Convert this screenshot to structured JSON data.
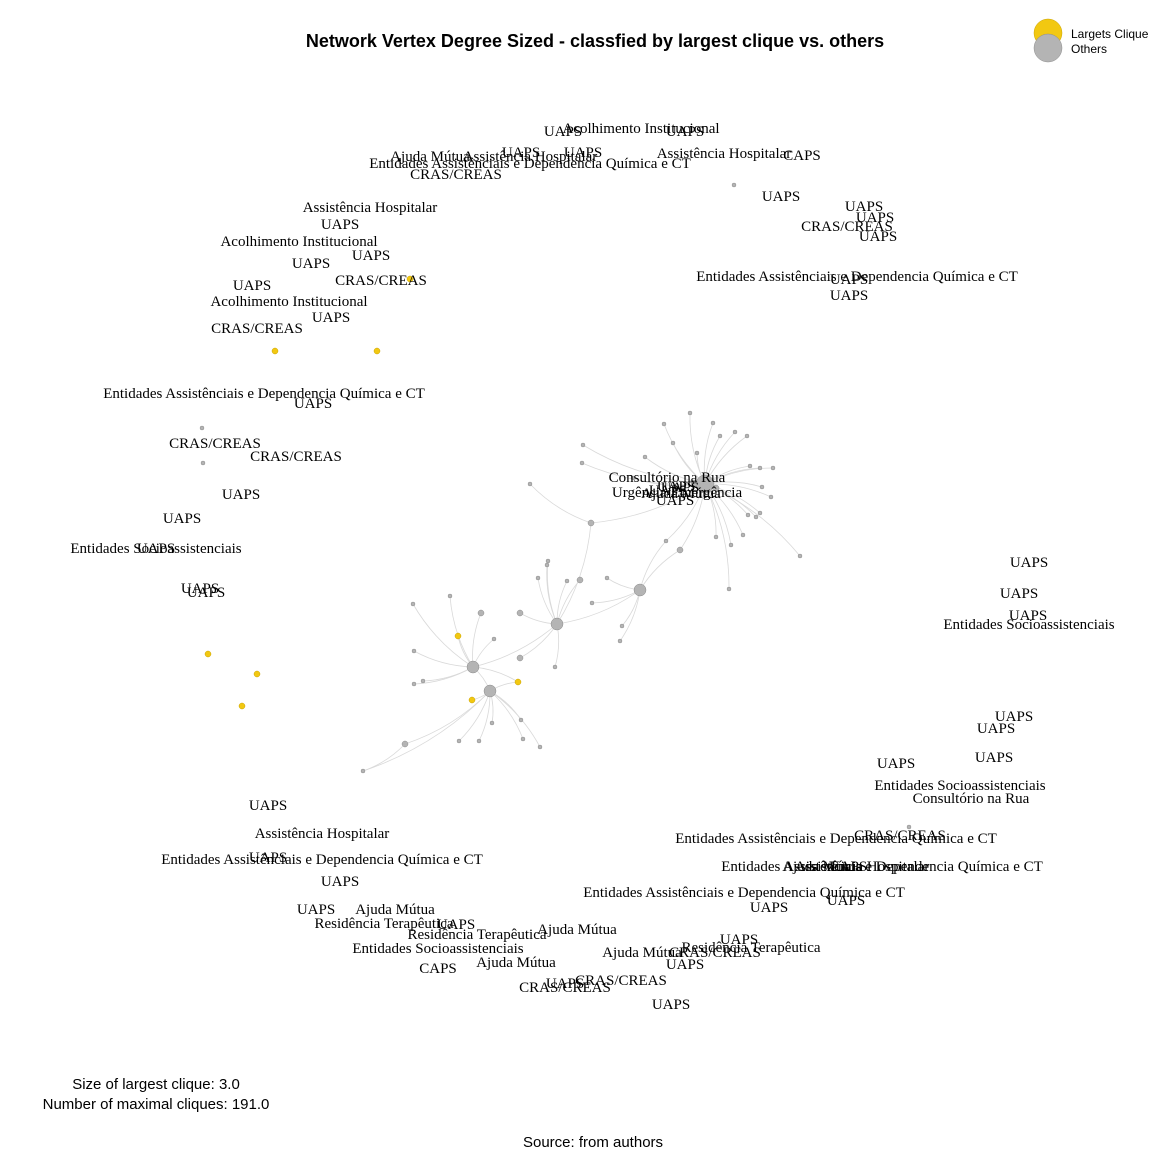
{
  "title": "Network Vertex Degree Sized - classfied by largest clique vs. others",
  "legend": {
    "items": [
      {
        "label": "Largets Clique",
        "color": "#f2c811"
      },
      {
        "label": "Others",
        "color": "#b4b4b4"
      }
    ]
  },
  "stats": {
    "largest_clique": "Size of largest clique: 3.0",
    "maximal_cliques": "Number of maximal cliques: 191.0"
  },
  "source": "Source: from authors",
  "labels": [
    "UAPS",
    "Acolhimento Institucional",
    "UAPS",
    "UAPS",
    "UAPS",
    "Ajuda Mútua",
    "Assistência Hospitalar",
    "CAPS",
    "Entidades Assistênciais e Dependencia Química e CT",
    "CRAS/CREAS",
    "Assistência Hospitalar",
    "UAPS",
    "UAPS",
    "UAPS",
    "CRAS/CREAS",
    "UAPS",
    "UAPS",
    "Entidades Assistênciais e Dependencia Química e CT",
    "UAPS",
    "UAPS",
    "Assistência Hospitalar",
    "UAPS",
    "Acolhimento Institucional",
    "UAPS",
    "UAPS",
    "CRAS/CREAS",
    "UAPS",
    "Acolhimento Institucional",
    "CRAS/CREAS",
    "CRAS/CREAS",
    "Entidades Assistênciais e Dependencia Química e CT",
    "UAPS",
    "CRAS/CREAS",
    "UAPS",
    "UAPS",
    "UAPS",
    "Entidades Socioassistenciais",
    "UAPS",
    "UAPS",
    "UAPS",
    "UAPS",
    "UAPS",
    "Entidades Socioassistenciais",
    "Consultório na Rua",
    "UAPS",
    "UAPS",
    "Ajuda Mútua",
    "Urgência/Emergência",
    "UAPS",
    "UAPS",
    "UAPS",
    "UAPS",
    "UAPS",
    "UAPS",
    "Entidades Socioassistenciais",
    "Consultório na Rua",
    "CRAS/CREAS",
    "Entidades Assistênciais e Dependencia Química e CT",
    "Entidades Assistênciais e Dependencia Química e CT",
    "Ajuda Mútua",
    "Assistência Hospitalar",
    "UAPS",
    "Entidades Assistênciais e Dependencia Química e CT",
    "UAPS",
    "UAPS",
    "UAPS",
    "Assistência Hospitalar",
    "UAPS",
    "Entidades Assistênciais e Dependencia Química e CT",
    "UAPS",
    "Ajuda Mútua",
    "UAPS",
    "Residência Terapêutica",
    "Residência Terapêutica",
    "Ajuda Mútua",
    "UAPS",
    "Entidades Socioassistenciais",
    "CAPS",
    "Ajuda Mútua",
    "Ajuda Mútua",
    "Residência Terapêutica",
    "UAPS",
    "CRAS/CREAS",
    "UAPS",
    "UAPS",
    "CRAS/CREAS",
    "CRAS/CREAS",
    "UAPS"
  ]
}
